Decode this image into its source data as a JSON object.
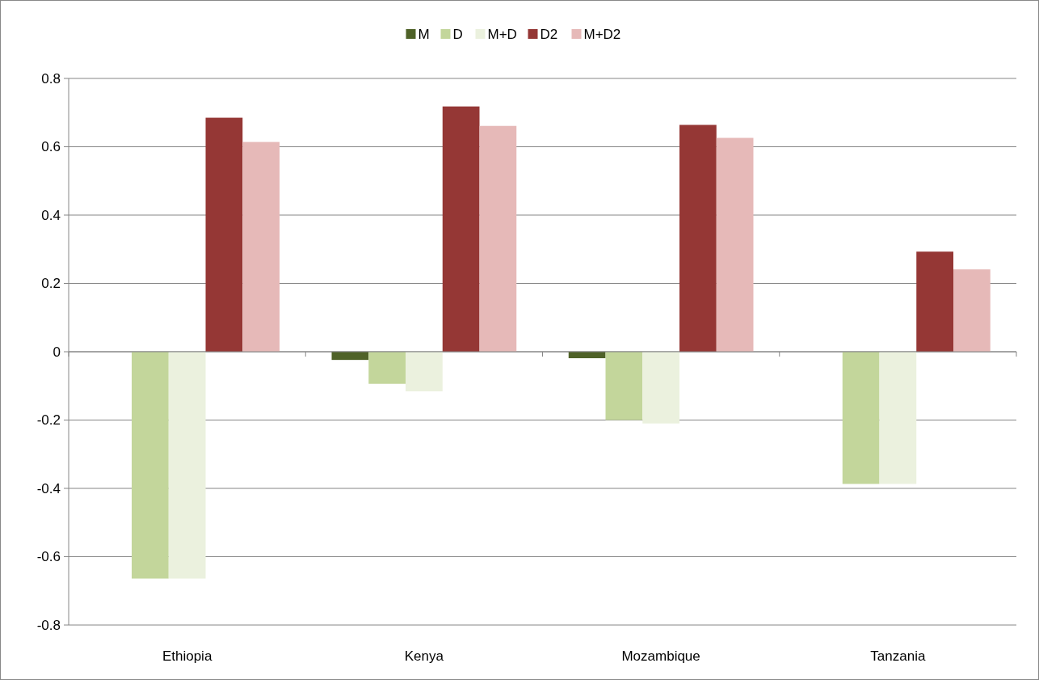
{
  "chart_data": {
    "type": "bar",
    "categories": [
      "Ethiopia",
      "Kenya",
      "Mozambique",
      "Tanzania"
    ],
    "series": [
      {
        "name": "M",
        "color": "#4f6228",
        "values": [
          0,
          -0.024,
          -0.019,
          0
        ]
      },
      {
        "name": "D",
        "color": "#c3d69b",
        "values": [
          -0.664,
          -0.094,
          -0.2,
          -0.387
        ]
      },
      {
        "name": "M+D",
        "color": "#ebf1de",
        "values": [
          -0.664,
          -0.116,
          -0.21,
          -0.387
        ]
      },
      {
        "name": "D2",
        "color": "#953735",
        "values": [
          0.685,
          0.718,
          0.664,
          0.293
        ]
      },
      {
        "name": "M+D2",
        "color": "#e6b9b8",
        "values": [
          0.614,
          0.661,
          0.626,
          0.241
        ]
      }
    ],
    "ylim": [
      -0.8,
      0.8
    ],
    "yticks": [
      -0.8,
      -0.6,
      -0.4,
      -0.2,
      0,
      0.2,
      0.4,
      0.6,
      0.8
    ],
    "grid": "y",
    "legend": "top"
  }
}
